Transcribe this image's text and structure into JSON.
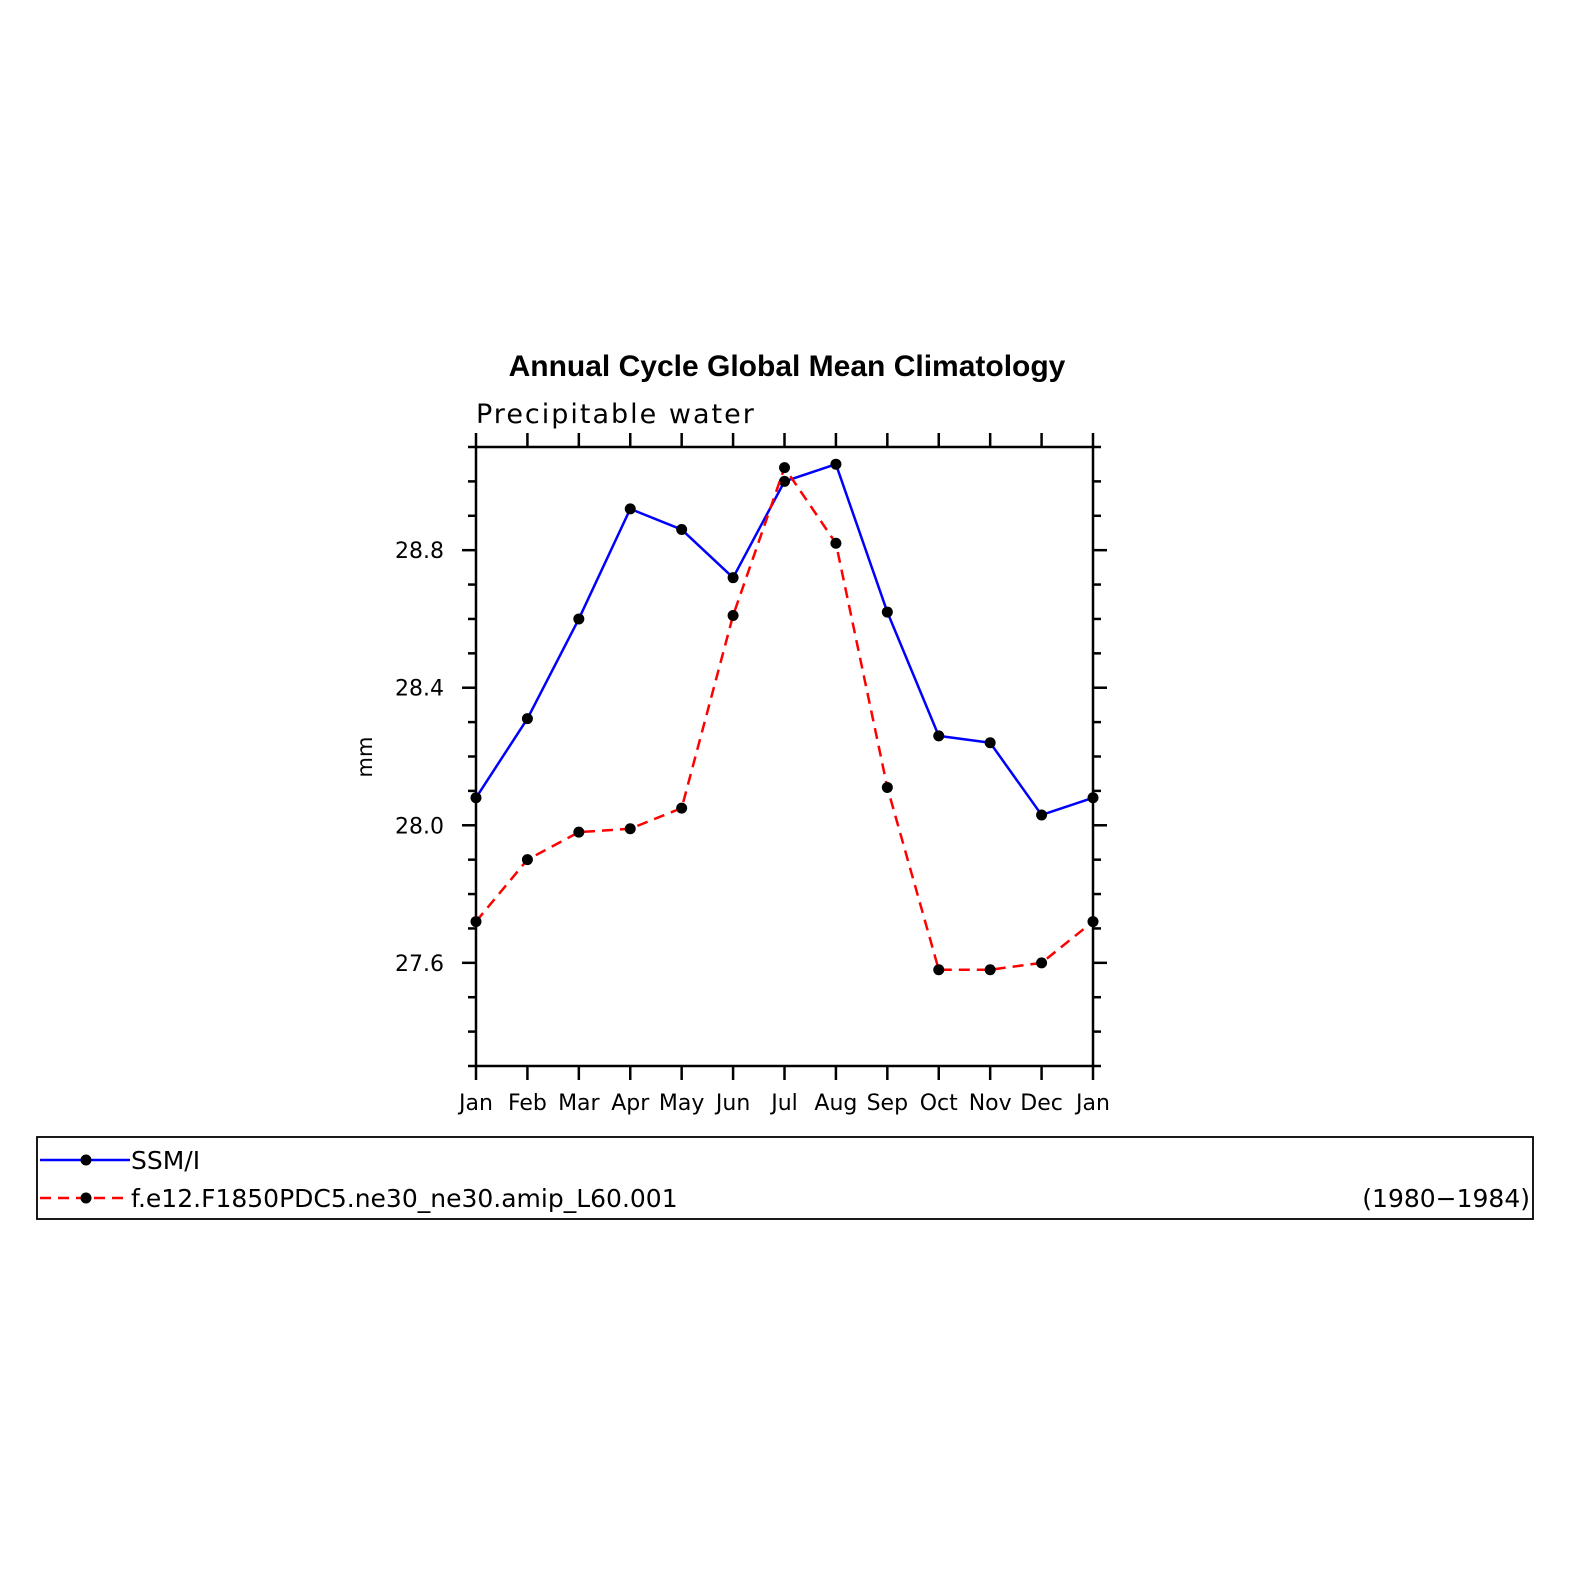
{
  "chart_data": {
    "type": "line",
    "title": "Annual Cycle Global Mean Climatology",
    "subtitle": "Precipitable water",
    "ylabel": "mm",
    "xlabel": "",
    "categories": [
      "Jan",
      "Feb",
      "Mar",
      "Apr",
      "May",
      "Jun",
      "Jul",
      "Aug",
      "Sep",
      "Oct",
      "Nov",
      "Dec",
      "Jan"
    ],
    "ylim": [
      27.3,
      29.1
    ],
    "yticks": [
      "28.8",
      "28.4",
      "28.0",
      "27.6"
    ],
    "yticks_values": [
      28.8,
      28.4,
      28.0,
      27.6
    ],
    "series": [
      {
        "name": "SSM/I",
        "color": "#0000ff",
        "dash": "solid",
        "values": [
          28.08,
          28.31,
          28.6,
          28.92,
          28.86,
          28.72,
          29.0,
          29.05,
          28.62,
          28.26,
          28.24,
          28.03,
          28.08
        ]
      },
      {
        "name": "f.e12.F1850PDC5.ne30_ne30.amip_L60.001",
        "color": "#ff0000",
        "dash": "dashed",
        "values": [
          27.72,
          27.9,
          27.98,
          27.99,
          28.05,
          28.61,
          29.04,
          28.82,
          28.11,
          27.58,
          27.58,
          27.6,
          27.72
        ]
      }
    ],
    "legend": {
      "placement": "bottom",
      "extra_text": "(1980−1984)"
    },
    "grid": false
  }
}
